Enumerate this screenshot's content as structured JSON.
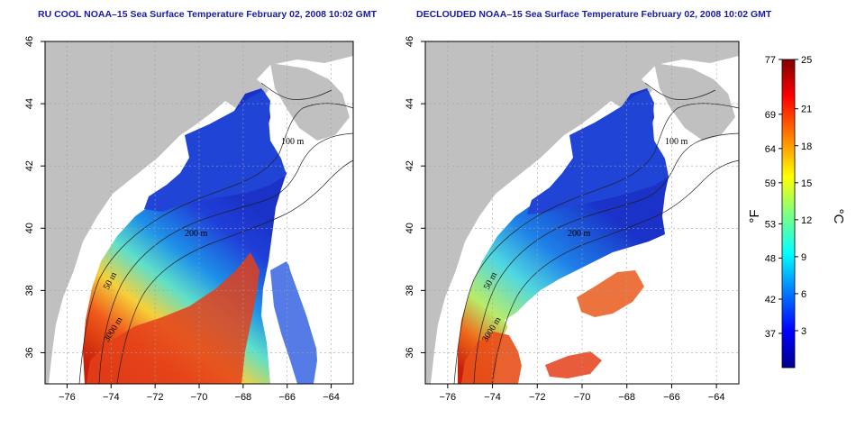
{
  "left_map": {
    "title": "RU COOL NOAA–15 Sea Surface Temperature February 02, 2008 10:02 GMT",
    "contour_labels": [
      "100 m",
      "200 m",
      "50 m",
      "3000 m"
    ]
  },
  "right_map": {
    "title": "DECLOUDED NOAA–15 Sea Surface Temperature February 02, 2008 10:02 GMT",
    "contour_labels": [
      "100 m",
      "200 m",
      "50 m",
      "3000 m"
    ]
  },
  "axes": {
    "lon_ticks": [
      "−76",
      "−74",
      "−72",
      "−70",
      "−68",
      "−66",
      "−64"
    ],
    "lat_ticks": [
      "36",
      "38",
      "40",
      "42",
      "44",
      "46"
    ],
    "lon_range": [
      -77,
      -63
    ],
    "lat_range": [
      35,
      46
    ]
  },
  "colorbar": {
    "fahrenheit_label": "°F",
    "celsius_label": "°C",
    "fahrenheit_ticks": [
      "77",
      "69",
      "64",
      "59",
      "53",
      "48",
      "42",
      "37"
    ],
    "celsius_ticks": [
      "25",
      "21",
      "18",
      "15",
      "12",
      "9",
      "6",
      "3"
    ],
    "range_celsius": [
      0,
      25
    ],
    "colormap": [
      "#00008f",
      "#0000ff",
      "#0080ff",
      "#00ffff",
      "#80ff80",
      "#ffff00",
      "#ff8000",
      "#ff0000",
      "#800000"
    ]
  },
  "colors": {
    "land": "#c0c0c0",
    "cloud_nodata": "#ffffff",
    "cold_water": "#1f4fd8",
    "warm_water": "#e8401a"
  }
}
